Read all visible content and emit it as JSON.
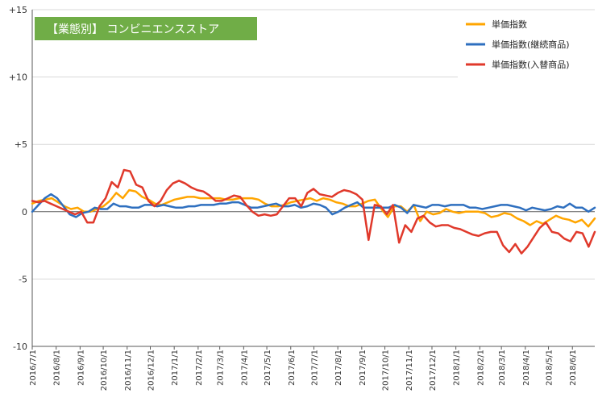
{
  "chart_data": {
    "type": "line",
    "title": "【業態別】 コンビニエンスストア",
    "xlabel": "",
    "ylabel": "",
    "ylim": [
      -10,
      15
    ],
    "yticks": [
      -10,
      -5,
      0,
      5,
      10,
      15
    ],
    "ytick_labels": [
      "-10",
      "-5",
      "0",
      "+5",
      "+10",
      "+15"
    ],
    "grid": "horizontal",
    "legend_position": "top-right",
    "x_start": "2016-07-01",
    "x_end": "2018-06-30",
    "xtick_labels": [
      "2016/7/1",
      "2016/8/1",
      "2016/9/1",
      "2016/10/1",
      "2016/11/1",
      "2016/12/1",
      "2017/1/1",
      "2017/2/1",
      "2017/3/1",
      "2017/4/1",
      "2017/5/1",
      "2017/6/1",
      "2017/7/1",
      "2017/8/1",
      "2017/9/1",
      "2017/10/1",
      "2017/11/1",
      "2017/12/1",
      "2018/1/1",
      "2018/2/1",
      "2018/3/1",
      "2018/4/1",
      "2018/5/1",
      "2018/6/1"
    ],
    "colors": {
      "title_bg": "#70ad47",
      "grid": "#d9d9d9",
      "axis": "#595959"
    },
    "series": [
      {
        "name": "単価指数",
        "color": "#ffa500",
        "values": [
          0.6,
          0.8,
          0.9,
          1.0,
          0.7,
          0.4,
          0.2,
          0.3,
          0.0,
          0.0,
          0.2,
          0.4,
          0.8,
          1.4,
          1.0,
          1.6,
          1.5,
          1.1,
          0.9,
          0.6,
          0.5,
          0.7,
          0.9,
          1.0,
          1.1,
          1.1,
          1.0,
          1.0,
          1.0,
          1.0,
          0.9,
          0.9,
          1.0,
          1.0,
          1.0,
          0.9,
          0.6,
          0.4,
          0.4,
          0.5,
          0.7,
          0.8,
          0.9,
          1.0,
          0.8,
          1.0,
          0.9,
          0.7,
          0.6,
          0.4,
          0.4,
          0.6,
          0.8,
          0.9,
          0.2,
          -0.4,
          0.4,
          0.4,
          0.0,
          0.5,
          -0.7,
          0.0,
          -0.2,
          -0.1,
          0.2,
          0.0,
          -0.1,
          0.0,
          0.0,
          0.0,
          -0.1,
          -0.4,
          -0.3,
          -0.1,
          -0.2,
          -0.5,
          -0.7,
          -1.0,
          -0.7,
          -0.9,
          -0.6,
          -0.3,
          -0.5,
          -0.6,
          -0.8,
          -0.6,
          -1.1,
          -0.5
        ],
        "start": "2016-07-01",
        "end": "2018-06-30"
      },
      {
        "name": "単価指数(継続商品)",
        "color": "#2e6fbf",
        "values": [
          0.0,
          0.5,
          1.0,
          1.3,
          1.0,
          0.4,
          -0.2,
          -0.4,
          -0.1,
          0.0,
          0.3,
          0.2,
          0.2,
          0.6,
          0.4,
          0.4,
          0.3,
          0.3,
          0.5,
          0.5,
          0.4,
          0.5,
          0.4,
          0.3,
          0.3,
          0.4,
          0.4,
          0.5,
          0.5,
          0.5,
          0.6,
          0.6,
          0.7,
          0.7,
          0.5,
          0.3,
          0.3,
          0.4,
          0.5,
          0.6,
          0.4,
          0.4,
          0.5,
          0.3,
          0.4,
          0.6,
          0.5,
          0.3,
          -0.2,
          0.0,
          0.3,
          0.5,
          0.7,
          0.3,
          0.3,
          0.3,
          0.3,
          0.3,
          0.5,
          0.3,
          -0.1,
          0.5,
          0.4,
          0.3,
          0.5,
          0.5,
          0.4,
          0.5,
          0.5,
          0.5,
          0.3,
          0.3,
          0.2,
          0.3,
          0.4,
          0.5,
          0.5,
          0.4,
          0.3,
          0.1,
          0.3,
          0.2,
          0.1,
          0.2,
          0.4,
          0.3,
          0.6,
          0.3,
          0.3,
          0.0,
          0.3
        ],
        "start": "2016-07-01",
        "end": "2018-06-30"
      },
      {
        "name": "単価指数(入替商品)",
        "color": "#e0392b",
        "values": [
          0.8,
          0.7,
          0.8,
          0.6,
          0.4,
          0.2,
          0.0,
          -0.2,
          0.0,
          -0.8,
          -0.8,
          0.4,
          1.0,
          2.2,
          1.8,
          3.1,
          3.0,
          2.0,
          1.8,
          0.8,
          0.4,
          0.8,
          1.6,
          2.1,
          2.3,
          2.1,
          1.8,
          1.6,
          1.5,
          1.2,
          0.8,
          0.8,
          1.0,
          1.2,
          1.1,
          0.5,
          0.0,
          -0.3,
          -0.2,
          -0.3,
          -0.2,
          0.4,
          1.0,
          1.0,
          0.4,
          1.4,
          1.7,
          1.3,
          1.2,
          1.1,
          1.4,
          1.6,
          1.5,
          1.3,
          0.9,
          -2.1,
          0.5,
          0.4,
          -0.2,
          0.5,
          -2.3,
          -1.0,
          -1.5,
          -0.5,
          -0.3,
          -0.8,
          -1.1,
          -1.0,
          -1.0,
          -1.2,
          -1.3,
          -1.5,
          -1.7,
          -1.8,
          -1.6,
          -1.5,
          -1.5,
          -2.5,
          -3.0,
          -2.4,
          -3.1,
          -2.6,
          -1.9,
          -1.2,
          -0.8,
          -1.5,
          -1.6,
          -2.0,
          -2.2,
          -1.5,
          -1.6,
          -2.6,
          -1.5
        ],
        "start": "2016-07-01",
        "end": "2018-06-30"
      }
    ]
  }
}
